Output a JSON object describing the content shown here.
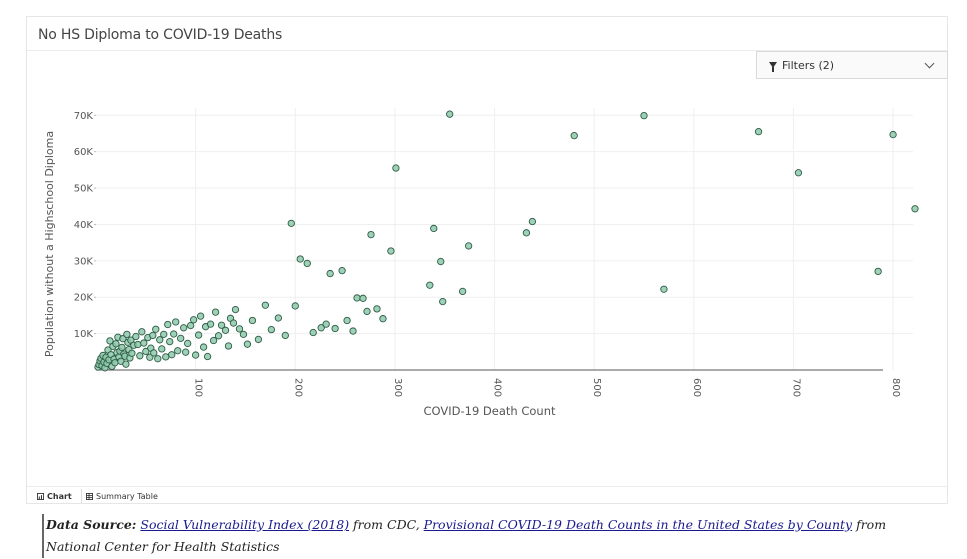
{
  "card": {
    "title": "No HS Diploma to COVID-19 Deaths",
    "filters_label": "Filters (2)"
  },
  "tabs": {
    "chart_label": "Chart",
    "summary_label": "Summary Table"
  },
  "source": {
    "prefix": "Data Source:",
    "link1": "Social Vulnerability Index (2018)",
    "mid": " from CDC, ",
    "link2": "Provisional COVID-19 Death Counts in the United States by County",
    "suffix": " from National Center for Health Statistics"
  },
  "colors": {
    "point_fill": "#8dc9aa",
    "point_stroke": "#2e5c46",
    "grid": "#efefef",
    "axis_text": "#555555"
  },
  "chart_data": {
    "type": "scatter",
    "title": "No HS Diploma to COVID-19 Deaths",
    "xlabel": "COVID-19 Death Count",
    "ylabel": "Population without a Highschool Diploma",
    "xlim": [
      0,
      820
    ],
    "ylim": [
      0,
      72000
    ],
    "xticks": [
      100,
      200,
      300,
      400,
      500,
      600,
      700,
      800
    ],
    "xtick_labels": [
      "100",
      "200",
      "300",
      "400",
      "500",
      "600",
      "700",
      "800"
    ],
    "yticks": [
      10000,
      20000,
      30000,
      40000,
      50000,
      60000,
      70000
    ],
    "ytick_labels": [
      "10K",
      "20K",
      "30K",
      "40K",
      "50K",
      "60K",
      "70K"
    ],
    "grid": true,
    "points": [
      [
        2,
        800
      ],
      [
        3,
        1500
      ],
      [
        4,
        2500
      ],
      [
        5,
        3200
      ],
      [
        6,
        1200
      ],
      [
        7,
        4000
      ],
      [
        8,
        2200
      ],
      [
        9,
        600
      ],
      [
        10,
        3500
      ],
      [
        11,
        1800
      ],
      [
        12,
        5500
      ],
      [
        13,
        2800
      ],
      [
        14,
        8000
      ],
      [
        15,
        4200
      ],
      [
        16,
        1000
      ],
      [
        17,
        6500
      ],
      [
        18,
        3000
      ],
      [
        19,
        2000
      ],
      [
        20,
        7200
      ],
      [
        21,
        4800
      ],
      [
        22,
        9000
      ],
      [
        23,
        3600
      ],
      [
        24,
        5200
      ],
      [
        25,
        2400
      ],
      [
        26,
        6200
      ],
      [
        27,
        8600
      ],
      [
        28,
        4400
      ],
      [
        29,
        3800
      ],
      [
        30,
        1600
      ],
      [
        31,
        9800
      ],
      [
        32,
        7600
      ],
      [
        33,
        5600
      ],
      [
        34,
        3300
      ],
      [
        35,
        8200
      ],
      [
        36,
        4600
      ],
      [
        38,
        6800
      ],
      [
        40,
        9200
      ],
      [
        42,
        7000
      ],
      [
        44,
        3900
      ],
      [
        46,
        10500
      ],
      [
        48,
        7400
      ],
      [
        50,
        5100
      ],
      [
        52,
        8900
      ],
      [
        54,
        3500
      ],
      [
        55,
        6000
      ],
      [
        57,
        9500
      ],
      [
        58,
        4700
      ],
      [
        60,
        11200
      ],
      [
        62,
        3100
      ],
      [
        64,
        8300
      ],
      [
        66,
        5800
      ],
      [
        68,
        9800
      ],
      [
        70,
        3600
      ],
      [
        72,
        12500
      ],
      [
        74,
        7800
      ],
      [
        76,
        4200
      ],
      [
        78,
        9900
      ],
      [
        80,
        13200
      ],
      [
        82,
        5300
      ],
      [
        85,
        8700
      ],
      [
        88,
        11600
      ],
      [
        90,
        4900
      ],
      [
        92,
        7300
      ],
      [
        95,
        12200
      ],
      [
        98,
        13800
      ],
      [
        100,
        4100
      ],
      [
        103,
        9600
      ],
      [
        105,
        14800
      ],
      [
        108,
        6300
      ],
      [
        110,
        11900
      ],
      [
        112,
        3700
      ],
      [
        115,
        12600
      ],
      [
        118,
        8100
      ],
      [
        120,
        15900
      ],
      [
        123,
        9400
      ],
      [
        126,
        12300
      ],
      [
        130,
        10900
      ],
      [
        133,
        6600
      ],
      [
        135,
        14200
      ],
      [
        138,
        12900
      ],
      [
        140,
        16600
      ],
      [
        144,
        11300
      ],
      [
        148,
        9800
      ],
      [
        152,
        7100
      ],
      [
        157,
        13600
      ],
      [
        163,
        8400
      ],
      [
        170,
        17800
      ],
      [
        176,
        11100
      ],
      [
        183,
        14300
      ],
      [
        190,
        9500
      ],
      [
        196,
        40300
      ],
      [
        200,
        17600
      ],
      [
        205,
        30500
      ],
      [
        212,
        29300
      ],
      [
        218,
        10300
      ],
      [
        226,
        11600
      ],
      [
        231,
        12600
      ],
      [
        235,
        26500
      ],
      [
        240,
        11400
      ],
      [
        247,
        27300
      ],
      [
        252,
        13600
      ],
      [
        258,
        10700
      ],
      [
        262,
        19800
      ],
      [
        268,
        19700
      ],
      [
        272,
        16100
      ],
      [
        276,
        37200
      ],
      [
        282,
        16800
      ],
      [
        288,
        14100
      ],
      [
        296,
        32700
      ],
      [
        301,
        55500
      ],
      [
        335,
        23300
      ],
      [
        339,
        38900
      ],
      [
        346,
        29800
      ],
      [
        348,
        18800
      ],
      [
        355,
        70300
      ],
      [
        368,
        21600
      ],
      [
        374,
        34100
      ],
      [
        432,
        37700
      ],
      [
        438,
        40800
      ],
      [
        480,
        64400
      ],
      [
        550,
        69900
      ],
      [
        570,
        22200
      ],
      [
        665,
        65500
      ],
      [
        705,
        54200
      ],
      [
        785,
        27100
      ],
      [
        800,
        64700
      ],
      [
        822,
        44300
      ]
    ]
  }
}
